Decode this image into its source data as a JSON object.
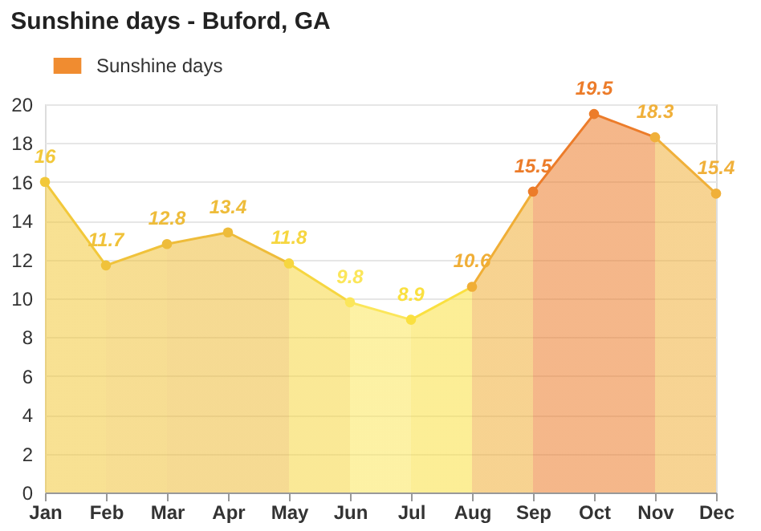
{
  "chart_data": {
    "type": "area",
    "title": "Sunshine days - Buford, GA",
    "categories": [
      "Jan",
      "Feb",
      "Mar",
      "Apr",
      "May",
      "Jun",
      "Jul",
      "Aug",
      "Sep",
      "Oct",
      "Nov",
      "Dec"
    ],
    "series": [
      {
        "name": "Sunshine days",
        "color": "#f08c30",
        "values": [
          16,
          11.7,
          12.8,
          13.4,
          11.8,
          9.8,
          8.9,
          10.6,
          15.5,
          19.5,
          18.3,
          15.4
        ],
        "colors": [
          "#f2c83a",
          "#f0c23a",
          "#eebc3a",
          "#eebc3a",
          "#f6d640",
          "#fbe65a",
          "#fae040",
          "#f0ae36",
          "#ec7c2a",
          "#ec7c2a",
          "#f0b03a",
          "#f0b03a"
        ]
      }
    ],
    "ylim": [
      0,
      20
    ],
    "yticks": [
      0,
      2,
      4,
      6,
      8,
      10,
      12,
      14,
      16,
      18,
      20
    ],
    "grid": "y",
    "legend": "top left",
    "marker": "circle",
    "data_labels": true
  }
}
